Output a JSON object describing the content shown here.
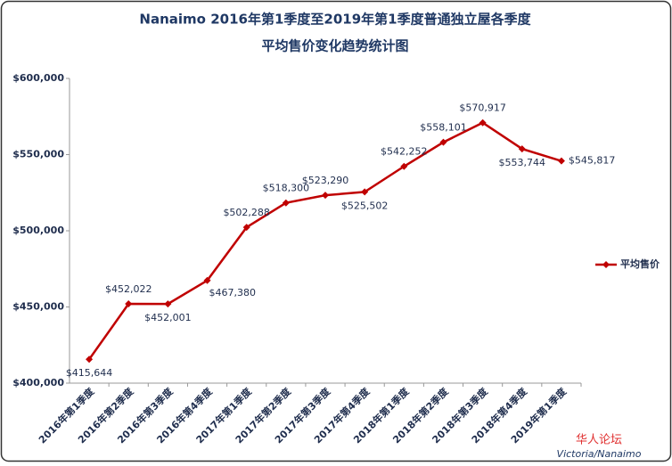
{
  "chart_data": {
    "type": "line",
    "title": "Nanaimo 2016年第1季度至2019年第1季度普通独立屋各季度",
    "subtitle": "平均售价变化趋势统计图",
    "categories": [
      "2016年第1季度",
      "2016年第2季度",
      "2016年第3季度",
      "2016年第4季度",
      "2017年第1季度",
      "2017年第2季度",
      "2017年第3季度",
      "2017年第4季度",
      "2018年第1季度",
      "2018年第2季度",
      "2018年第3季度",
      "2018年第4季度",
      "2019年第1季度"
    ],
    "series": [
      {
        "name": "平均售价",
        "color": "#c00000",
        "values": [
          415644,
          452022,
          452001,
          467380,
          502288,
          518300,
          523290,
          525502,
          542252,
          558101,
          570917,
          553744,
          545817
        ],
        "value_labels": [
          "$415,644",
          "$452,022",
          "$452,001",
          "$467,380",
          "$502,288",
          "$518,300",
          "$523,290",
          "$525,502",
          "$542,252",
          "$558,101",
          "$570,917",
          "$553,744",
          "$545,817"
        ]
      }
    ],
    "ylim": [
      400000,
      600000
    ],
    "yticks": [
      {
        "value": 400000,
        "label": "$400,000"
      },
      {
        "value": 450000,
        "label": "$450,000"
      },
      {
        "value": 500000,
        "label": "$500,000"
      },
      {
        "value": 550000,
        "label": "$550,000"
      },
      {
        "value": 600000,
        "label": "$600,000"
      }
    ],
    "grid": false,
    "legend": "right",
    "watermark": {
      "line1": "华人论坛",
      "line2": "Victoria/Nanaimo"
    }
  }
}
